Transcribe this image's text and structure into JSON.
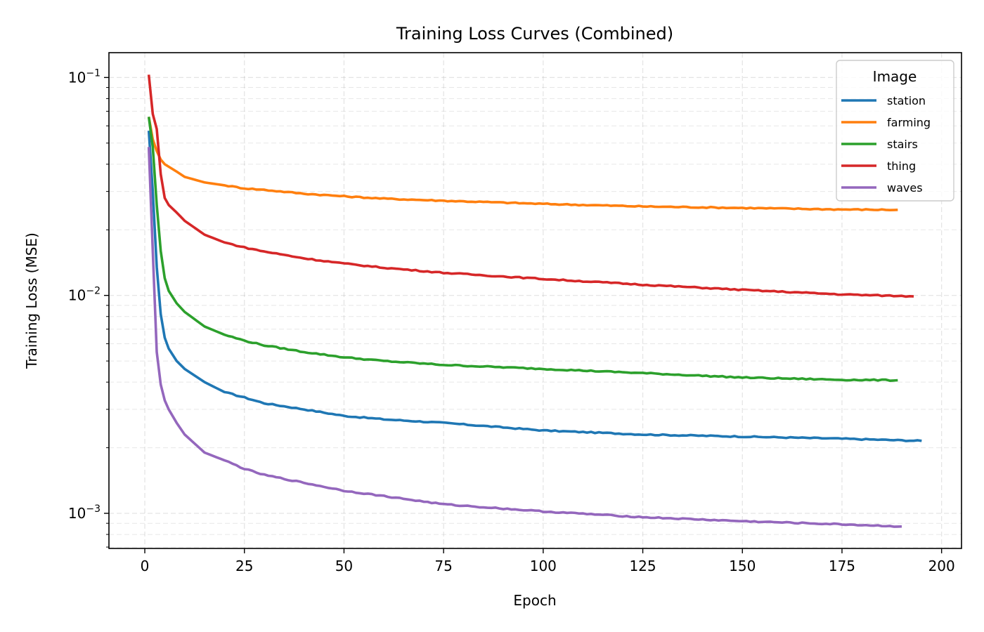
{
  "chart_data": {
    "type": "line",
    "title": "Training Loss Curves (Combined)",
    "xlabel": "Epoch",
    "ylabel": "Training Loss (MSE)",
    "xscale": "linear",
    "yscale": "log",
    "xlim": [
      -9,
      205
    ],
    "ylim": [
      0.00069,
      0.13
    ],
    "xticks": [
      0,
      25,
      50,
      75,
      100,
      125,
      150,
      175,
      200
    ],
    "xtick_labels": [
      "0",
      "25",
      "50",
      "75",
      "100",
      "125",
      "150",
      "175",
      "200"
    ],
    "yticks": [
      0.001,
      0.01,
      0.1
    ],
    "ytick_labels": [
      {
        "base": "10",
        "exp": "−3"
      },
      {
        "base": "10",
        "exp": "−2"
      },
      {
        "base": "10",
        "exp": "−1"
      }
    ],
    "grid": true,
    "grid_style": "dashed",
    "legend": {
      "title": "Image",
      "position": "top-right"
    },
    "series": [
      {
        "name": "station",
        "color": "#1f77b4",
        "anchors": [
          [
            1,
            0.057
          ],
          [
            2,
            0.03
          ],
          [
            3,
            0.0135
          ],
          [
            4,
            0.0082
          ],
          [
            5,
            0.0064
          ],
          [
            6,
            0.0057
          ],
          [
            8,
            0.005
          ],
          [
            10,
            0.0046
          ],
          [
            15,
            0.004
          ],
          [
            20,
            0.0036
          ],
          [
            25,
            0.0034
          ],
          [
            30,
            0.0032
          ],
          [
            40,
            0.003
          ],
          [
            50,
            0.0028
          ],
          [
            60,
            0.0027
          ],
          [
            75,
            0.0026
          ],
          [
            100,
            0.0024
          ],
          [
            125,
            0.0023
          ],
          [
            150,
            0.00225
          ],
          [
            175,
            0.0022
          ],
          [
            195,
            0.00215
          ]
        ]
      },
      {
        "name": "farming",
        "color": "#ff7f0e",
        "anchors": [
          [
            1,
            0.066
          ],
          [
            2,
            0.052
          ],
          [
            3,
            0.046
          ],
          [
            4,
            0.042
          ],
          [
            5,
            0.04
          ],
          [
            8,
            0.037
          ],
          [
            10,
            0.035
          ],
          [
            15,
            0.033
          ],
          [
            20,
            0.032
          ],
          [
            25,
            0.031
          ],
          [
            30,
            0.0305
          ],
          [
            40,
            0.0293
          ],
          [
            50,
            0.0285
          ],
          [
            60,
            0.0278
          ],
          [
            75,
            0.0272
          ],
          [
            100,
            0.0263
          ],
          [
            125,
            0.0256
          ],
          [
            150,
            0.0252
          ],
          [
            175,
            0.0248
          ],
          [
            189,
            0.0247
          ]
        ]
      },
      {
        "name": "stairs",
        "color": "#2ca02c",
        "anchors": [
          [
            1,
            0.066
          ],
          [
            2,
            0.048
          ],
          [
            3,
            0.026
          ],
          [
            4,
            0.016
          ],
          [
            5,
            0.012
          ],
          [
            6,
            0.0105
          ],
          [
            8,
            0.0092
          ],
          [
            10,
            0.0084
          ],
          [
            15,
            0.0072
          ],
          [
            20,
            0.0066
          ],
          [
            25,
            0.0062
          ],
          [
            30,
            0.0059
          ],
          [
            40,
            0.0055
          ],
          [
            50,
            0.0052
          ],
          [
            60,
            0.005
          ],
          [
            75,
            0.0048
          ],
          [
            100,
            0.0046
          ],
          [
            125,
            0.0044
          ],
          [
            150,
            0.0042
          ],
          [
            175,
            0.0041
          ],
          [
            189,
            0.00408
          ]
        ]
      },
      {
        "name": "thing",
        "color": "#d62728",
        "anchors": [
          [
            1,
            0.103
          ],
          [
            2,
            0.068
          ],
          [
            3,
            0.058
          ],
          [
            4,
            0.036
          ],
          [
            5,
            0.028
          ],
          [
            6,
            0.026
          ],
          [
            8,
            0.024
          ],
          [
            10,
            0.022
          ],
          [
            15,
            0.019
          ],
          [
            20,
            0.0175
          ],
          [
            25,
            0.0166
          ],
          [
            30,
            0.0159
          ],
          [
            40,
            0.0148
          ],
          [
            50,
            0.014
          ],
          [
            60,
            0.0134
          ],
          [
            75,
            0.0127
          ],
          [
            100,
            0.0119
          ],
          [
            125,
            0.0112
          ],
          [
            150,
            0.0106
          ],
          [
            175,
            0.0101
          ],
          [
            193,
            0.0099
          ]
        ]
      },
      {
        "name": "waves",
        "color": "#9467bd",
        "anchors": [
          [
            1,
            0.048
          ],
          [
            2,
            0.016
          ],
          [
            3,
            0.0055
          ],
          [
            4,
            0.0039
          ],
          [
            5,
            0.0033
          ],
          [
            6,
            0.003
          ],
          [
            8,
            0.0026
          ],
          [
            10,
            0.0023
          ],
          [
            15,
            0.0019
          ],
          [
            20,
            0.00175
          ],
          [
            25,
            0.0016
          ],
          [
            30,
            0.0015
          ],
          [
            40,
            0.00138
          ],
          [
            50,
            0.00127
          ],
          [
            60,
            0.0012
          ],
          [
            75,
            0.0011
          ],
          [
            100,
            0.00102
          ],
          [
            125,
            0.00096
          ],
          [
            150,
            0.00092
          ],
          [
            175,
            0.00089
          ],
          [
            190,
            0.00087
          ]
        ]
      }
    ]
  }
}
